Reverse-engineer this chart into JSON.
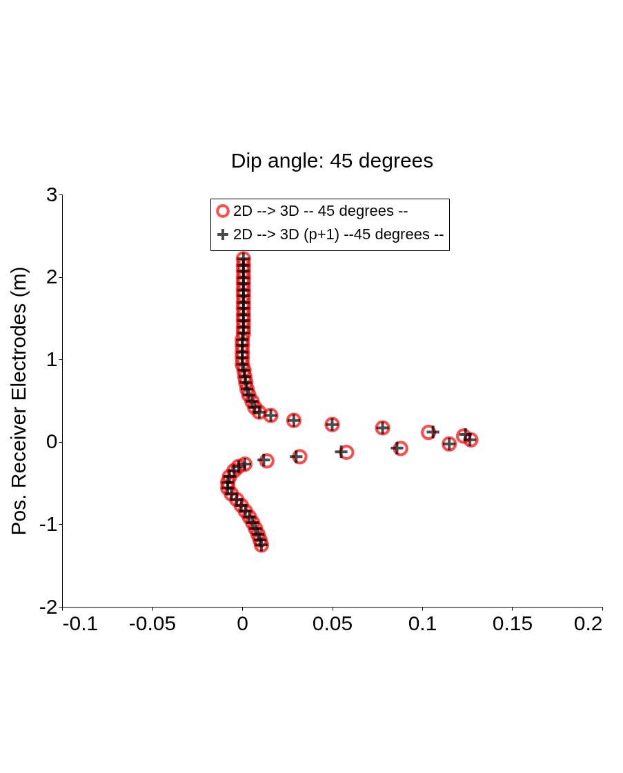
{
  "chart_data": {
    "type": "scatter",
    "title": "Dip angle: 45 degrees",
    "ylabel": "Pos. Receiver Electrodes (m)",
    "xlim": [
      -0.1,
      0.2
    ],
    "xticks": [
      -0.1,
      -0.05,
      0,
      0.05,
      0.1,
      0.15,
      0.2
    ],
    "ylim": [
      -2,
      3
    ],
    "yticks": [
      -2,
      -1,
      0,
      1,
      2,
      3
    ],
    "grid": false,
    "legend": "top right",
    "series": [
      {
        "name": "2D --> 3D -- 45 degrees --",
        "color": "#ff0000",
        "marker": "circle",
        "x": [
          0.0007,
          0.0007,
          0.0007,
          0.0007,
          0.0007,
          0.0007,
          0.0007,
          0.0007,
          0.0007,
          0.0007,
          0.0007,
          0.0007,
          0.0007,
          0.0001,
          0.0001,
          0.0001,
          0.0001,
          0.0001,
          0.001,
          0.0015,
          0.002,
          0.0027,
          0.0037,
          0.0055,
          0.007,
          0.0095,
          0.0159,
          0.0287,
          0.05,
          0.078,
          0.1035,
          0.123,
          0.127,
          0.115,
          0.088,
          0.058,
          0.032,
          0.0137,
          0.0015,
          -0.002,
          -0.0045,
          -0.007,
          -0.008,
          -0.008,
          -0.006,
          -0.003,
          -0.0005,
          0.0018,
          0.004,
          0.0058,
          0.0074,
          0.0088,
          0.0099,
          0.0107
        ],
        "values": [
          2.22,
          2.14,
          2.07,
          1.99,
          1.92,
          1.84,
          1.77,
          1.69,
          1.62,
          1.54,
          1.47,
          1.39,
          1.32,
          1.24,
          1.17,
          1.09,
          1.02,
          0.94,
          0.87,
          0.79,
          0.72,
          0.64,
          0.57,
          0.49,
          0.42,
          0.36,
          0.32,
          0.26,
          0.21,
          0.17,
          0.115,
          0.07,
          0.025,
          -0.025,
          -0.08,
          -0.127,
          -0.18,
          -0.23,
          -0.27,
          -0.3,
          -0.35,
          -0.42,
          -0.49,
          -0.56,
          -0.63,
          -0.7,
          -0.77,
          -0.84,
          -0.91,
          -0.98,
          -1.05,
          -1.12,
          -1.19,
          -1.25
        ]
      },
      {
        "name": "2D --> 3D (p+1) --45 degrees --",
        "color": "#000000",
        "marker": "cross",
        "x": [
          0.0007,
          0.0007,
          0.0007,
          0.0007,
          0.0007,
          0.0007,
          0.0007,
          0.0007,
          0.0007,
          0.0007,
          0.0007,
          0.0007,
          0.0007,
          0.0001,
          0.0001,
          0.0001,
          0.0001,
          0.0001,
          0.001,
          0.0015,
          0.002,
          0.0027,
          0.0037,
          0.0055,
          0.007,
          0.0095,
          0.0159,
          0.0287,
          0.05,
          0.078,
          0.106,
          0.124,
          0.1265,
          0.115,
          0.086,
          0.055,
          0.03,
          0.012,
          0.0015,
          -0.002,
          -0.0045,
          -0.007,
          -0.008,
          -0.008,
          -0.006,
          -0.003,
          -0.0005,
          0.0018,
          0.004,
          0.0058,
          0.0074,
          0.0088,
          0.0099,
          0.0107
        ],
        "values": [
          2.22,
          2.14,
          2.07,
          1.99,
          1.92,
          1.84,
          1.77,
          1.69,
          1.62,
          1.54,
          1.47,
          1.39,
          1.32,
          1.24,
          1.17,
          1.09,
          1.02,
          0.94,
          0.87,
          0.79,
          0.72,
          0.64,
          0.57,
          0.49,
          0.42,
          0.36,
          0.32,
          0.26,
          0.21,
          0.17,
          0.12,
          0.09,
          0.025,
          -0.025,
          -0.075,
          -0.12,
          -0.18,
          -0.22,
          -0.27,
          -0.3,
          -0.35,
          -0.42,
          -0.49,
          -0.56,
          -0.63,
          -0.7,
          -0.77,
          -0.84,
          -0.91,
          -0.98,
          -1.05,
          -1.12,
          -1.19,
          -1.25
        ]
      }
    ]
  }
}
